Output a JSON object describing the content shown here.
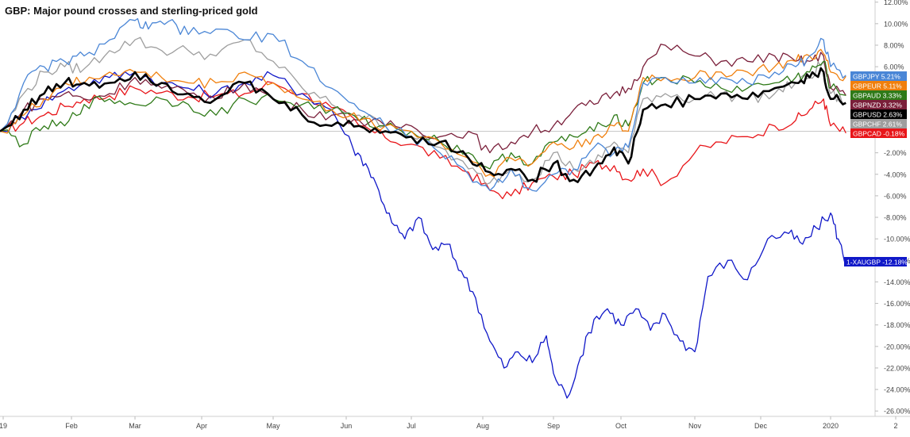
{
  "chart_data": {
    "type": "line",
    "title": "GBP: Major pound crosses and sterling-priced gold",
    "x_ticks": [
      "19",
      "Feb",
      "Mar",
      "Apr",
      "May",
      "Jun",
      "Jul",
      "Aug",
      "Sep",
      "Oct",
      "Nov",
      "Dec",
      "2020",
      "2"
    ],
    "y_ticks": [
      "12.00%",
      "10.00%",
      "8.00%",
      "6.00%",
      "4.00%",
      "2.00%",
      "0.00%",
      "-2.00%",
      "-4.00%",
      "-6.00%",
      "-8.00%",
      "-10.00%",
      "-12.00%",
      "-14.00%",
      "-16.00%",
      "-18.00%",
      "-20.00%",
      "-22.00%",
      "-24.00%",
      "-26.00%"
    ],
    "ylim": [
      -26.5,
      12.2
    ],
    "x_range": [
      0,
      12.85
    ],
    "grid": false,
    "legend": "right-axis value labels",
    "series": [
      {
        "name": "GBPCAD",
        "color": "#e8161a",
        "last_label": "-0.18%",
        "x": [
          0,
          0.3,
          0.6,
          0.9,
          1.2,
          1.6,
          2.0,
          2.4,
          2.8,
          3.2,
          3.6,
          4.0,
          4.4,
          4.8,
          5.2,
          5.6,
          6.0,
          6.4,
          6.8,
          7.1,
          7.4,
          7.7,
          8.0,
          8.3,
          8.6,
          8.9,
          9.1,
          9.3,
          9.6,
          10.0,
          10.4,
          10.8,
          11.2,
          11.5,
          11.7,
          11.9,
          12.0,
          12.2
        ],
        "values": [
          0,
          0.8,
          1.5,
          2.3,
          3.0,
          3.3,
          4.0,
          3.6,
          3.2,
          3.3,
          3.5,
          4.5,
          3.5,
          2.2,
          0.5,
          -0.6,
          -1.2,
          -2.5,
          -3.8,
          -5.5,
          -6.0,
          -4.8,
          -4.2,
          -4.0,
          -3.0,
          -3.2,
          -4.5,
          -3.5,
          -4.8,
          -2.0,
          -1.0,
          -0.5,
          0.5,
          1.0,
          2.0,
          3.0,
          0.5,
          -0.18
        ]
      },
      {
        "name": "1-XAUGBP",
        "color": "#1018c8",
        "last_label": "-12.18%",
        "x": [
          0,
          0.4,
          0.8,
          1.2,
          1.6,
          2.0,
          2.4,
          2.8,
          3.2,
          3.6,
          4.0,
          4.4,
          4.8,
          5.1,
          5.3,
          5.5,
          5.7,
          5.9,
          6.1,
          6.3,
          6.5,
          6.7,
          6.9,
          7.1,
          7.3,
          7.5,
          7.7,
          7.9,
          8.0,
          8.2,
          8.4,
          8.6,
          8.8,
          9.0,
          9.2,
          9.4,
          9.6,
          9.8,
          10.0,
          10.2,
          10.5,
          10.8,
          11.1,
          11.4,
          11.6,
          11.8,
          12.0,
          12.1,
          12.2
        ],
        "values": [
          0,
          2.0,
          3.5,
          4.5,
          5.0,
          5.5,
          4.5,
          4.0,
          3.5,
          4.5,
          5.2,
          3.5,
          2.0,
          -1.5,
          -3.0,
          -5.5,
          -8.5,
          -10.0,
          -8.0,
          -11.0,
          -10.5,
          -13.0,
          -15.5,
          -19.5,
          -22.0,
          -20.5,
          -21.5,
          -19.0,
          -22.5,
          -24.8,
          -21.0,
          -17.5,
          -16.5,
          -18.0,
          -16.5,
          -18.5,
          -17.0,
          -19.5,
          -20.5,
          -13.5,
          -12.0,
          -13.8,
          -10.0,
          -9.5,
          -10.5,
          -9.0,
          -7.6,
          -10.0,
          -12.18
        ]
      },
      {
        "name": "GBPCHF",
        "color": "#9e9e9e",
        "last_label": "2.61%",
        "x": [
          0,
          0.3,
          0.6,
          0.9,
          1.2,
          1.6,
          2.0,
          2.4,
          2.8,
          3.2,
          3.6,
          4.0,
          4.4,
          4.8,
          5.2,
          5.6,
          6.0,
          6.4,
          6.8,
          7.1,
          7.4,
          7.7,
          8.0,
          8.3,
          8.6,
          8.9,
          9.1,
          9.3,
          9.6,
          10.0,
          10.4,
          10.8,
          11.2,
          11.5,
          11.7,
          11.9,
          12.0,
          12.2
        ],
        "values": [
          0,
          3.5,
          5.5,
          6.0,
          5.8,
          7.5,
          8.5,
          7.5,
          7.5,
          7.0,
          8.5,
          6.5,
          4.0,
          2.5,
          1.5,
          0.5,
          -0.5,
          -1.5,
          -3.5,
          -4.8,
          -3.5,
          -4.5,
          -2.0,
          -3.5,
          -3.0,
          -1.0,
          -2.0,
          3.0,
          3.5,
          3.0,
          3.5,
          3.0,
          3.5,
          4.5,
          5.0,
          6.5,
          3.5,
          2.61
        ]
      },
      {
        "name": "GBPNZD",
        "color": "#7a1f3a",
        "last_label": "3.32%",
        "x": [
          0,
          0.3,
          0.6,
          0.9,
          1.2,
          1.6,
          2.0,
          2.4,
          2.8,
          3.2,
          3.6,
          4.0,
          4.4,
          4.8,
          5.2,
          5.6,
          6.0,
          6.4,
          6.8,
          7.1,
          7.4,
          7.7,
          8.0,
          8.3,
          8.6,
          8.9,
          9.1,
          9.3,
          9.6,
          10.0,
          10.4,
          10.8,
          11.2,
          11.5,
          11.7,
          11.9,
          12.0,
          12.2
        ],
        "values": [
          0,
          2.0,
          3.0,
          3.5,
          3.0,
          3.5,
          5.0,
          4.0,
          3.5,
          3.0,
          4.5,
          3.0,
          2.0,
          1.5,
          1.0,
          0.5,
          0.5,
          -0.5,
          0,
          -2.0,
          -1.0,
          0,
          0.5,
          2.0,
          2.5,
          3.5,
          4.0,
          6.0,
          8.0,
          7.0,
          6.5,
          6.5,
          7.0,
          6.5,
          6.5,
          7.0,
          4.0,
          3.32
        ]
      },
      {
        "name": "GBPAUD",
        "color": "#2f7a18",
        "last_label": "3.33%",
        "x": [
          0,
          0.3,
          0.6,
          0.9,
          1.2,
          1.6,
          2.0,
          2.4,
          2.8,
          3.2,
          3.6,
          4.0,
          4.4,
          4.8,
          5.2,
          5.6,
          6.0,
          6.4,
          6.8,
          7.1,
          7.4,
          7.7,
          8.0,
          8.3,
          8.6,
          8.9,
          9.1,
          9.3,
          9.6,
          10.0,
          10.4,
          10.8,
          11.2,
          11.5,
          11.7,
          11.9,
          12.0,
          12.2
        ],
        "values": [
          0,
          -1.2,
          0.5,
          0.5,
          2.5,
          3.0,
          2.5,
          3.0,
          2.5,
          1.5,
          3.0,
          3.0,
          2.5,
          2.0,
          1.0,
          0.5,
          0,
          -1.0,
          -2.0,
          -3.5,
          -2.0,
          -3.0,
          -1.0,
          -0.5,
          0,
          1.5,
          0.5,
          4.5,
          5.0,
          4.5,
          4.0,
          4.0,
          4.5,
          5.0,
          5.5,
          6.5,
          4.0,
          3.33
        ]
      },
      {
        "name": "GBPEUR",
        "color": "#f07f0c",
        "last_label": "5.11%",
        "x": [
          0,
          0.3,
          0.6,
          0.9,
          1.2,
          1.6,
          2.0,
          2.4,
          2.8,
          3.2,
          3.6,
          4.0,
          4.4,
          4.8,
          5.2,
          5.6,
          6.0,
          6.4,
          6.8,
          7.1,
          7.4,
          7.7,
          8.0,
          8.3,
          8.6,
          8.9,
          9.1,
          9.3,
          9.6,
          10.0,
          10.4,
          10.8,
          11.2,
          11.5,
          11.7,
          11.9,
          12.0,
          12.2
        ],
        "values": [
          0,
          1.5,
          3.0,
          4.5,
          4.5,
          5.5,
          5.5,
          5.0,
          4.5,
          4.5,
          5.5,
          4.5,
          3.0,
          2.0,
          1.0,
          0.5,
          0,
          -1.0,
          -2.5,
          -4.0,
          -2.5,
          -3.0,
          -1.0,
          -1.5,
          -0.5,
          0.5,
          0,
          5.0,
          5.0,
          5.0,
          5.5,
          5.5,
          6.0,
          6.5,
          7.0,
          7.2,
          5.5,
          5.11
        ]
      },
      {
        "name": "GBPJPY",
        "color": "#4a86d6",
        "last_label": "5.21%",
        "x": [
          0,
          0.3,
          0.6,
          0.9,
          1.2,
          1.6,
          2.0,
          2.2,
          2.5,
          2.8,
          3.2,
          3.6,
          4.0,
          4.4,
          4.8,
          5.2,
          5.6,
          6.0,
          6.4,
          6.8,
          7.1,
          7.4,
          7.7,
          8.0,
          8.3,
          8.6,
          8.9,
          9.1,
          9.3,
          9.6,
          10.0,
          10.4,
          10.8,
          11.2,
          11.5,
          11.7,
          11.9,
          12.0,
          12.2
        ],
        "values": [
          0,
          4.5,
          6.0,
          6.5,
          7.0,
          8.5,
          10.3,
          9.5,
          10.2,
          9.0,
          9.5,
          8.5,
          9.0,
          6.5,
          4.0,
          2.0,
          0.5,
          -0.5,
          -2.0,
          -4.0,
          -5.5,
          -3.5,
          -5.5,
          -4.0,
          -3.5,
          -1.5,
          -2.0,
          -1.5,
          4.5,
          5.0,
          4.5,
          5.0,
          4.5,
          5.5,
          6.0,
          7.0,
          8.5,
          6.0,
          5.21
        ]
      },
      {
        "name": "GBPUSD",
        "color": "#000000",
        "last_label": "2.63%",
        "x": [
          0,
          0.3,
          0.6,
          0.9,
          1.2,
          1.6,
          2.0,
          2.4,
          2.8,
          3.2,
          3.6,
          4.0,
          4.4,
          4.8,
          5.2,
          5.6,
          6.0,
          6.4,
          6.8,
          7.1,
          7.4,
          7.7,
          8.0,
          8.3,
          8.6,
          8.9,
          9.1,
          9.3,
          9.6,
          10.0,
          10.4,
          10.8,
          11.2,
          11.5,
          11.7,
          11.9,
          12.0,
          12.2
        ],
        "values": [
          0,
          2.0,
          3.5,
          4.5,
          4.5,
          4.5,
          5.5,
          4.5,
          3.5,
          3.0,
          4.5,
          3.0,
          1.5,
          0.5,
          0.5,
          0,
          -0.5,
          -1.0,
          -2.5,
          -3.8,
          -3.5,
          -4.5,
          -3.0,
          -4.5,
          -3.5,
          -1.5,
          -3.0,
          2.0,
          2.5,
          3.0,
          3.5,
          3.0,
          4.0,
          4.5,
          5.0,
          5.5,
          3.0,
          2.63
        ]
      }
    ],
    "labels_order": [
      "GBPJPY",
      "GBPEUR",
      "GBPAUD",
      "GBPNZD",
      "GBPUSD",
      "GBPCHF",
      "GBPCAD"
    ]
  }
}
